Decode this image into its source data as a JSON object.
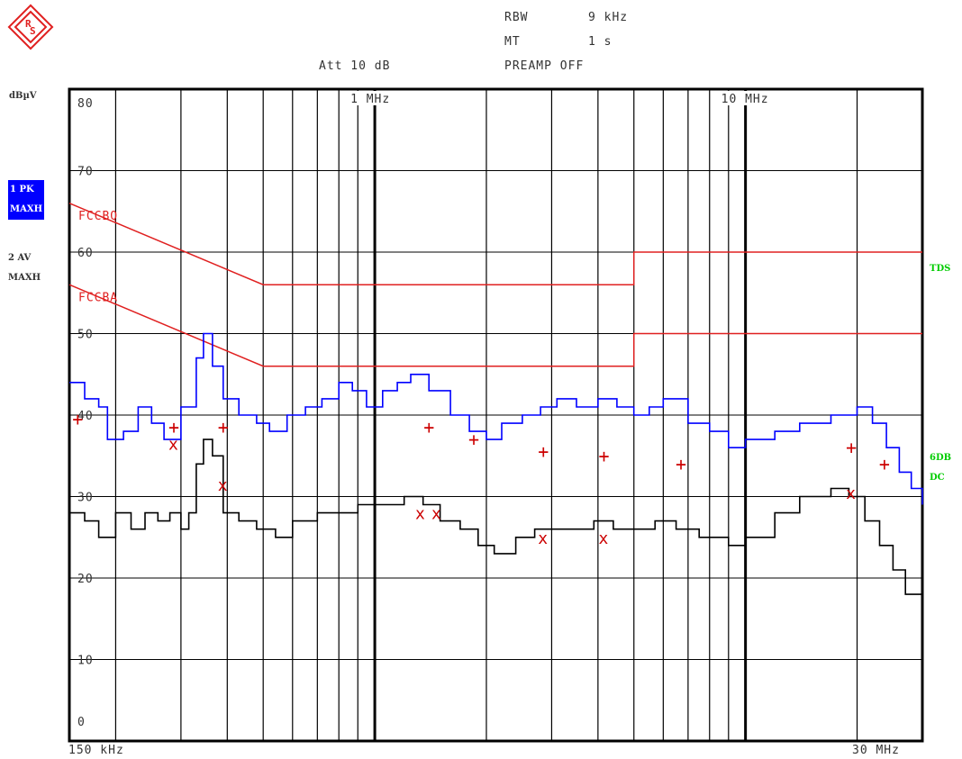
{
  "header": {
    "rbw_label": "RBW",
    "rbw_value": "9 kHz",
    "mt_label": "MT",
    "mt_value": "1 s",
    "att": "Att 10 dB",
    "preamp": "PREAMP OFF"
  },
  "side": {
    "unit": "dBµV",
    "trace1_a": "1 PK",
    "trace1_b": "MAXH",
    "trace2_a": "2 AV",
    "trace2_b": "MAXH",
    "right_top": "TDS",
    "right_mid_a": "6DB",
    "right_mid_b": "DC"
  },
  "colors": {
    "trace1": "#0000ff",
    "trace2": "#000000",
    "limit": "#e02020",
    "accent_green": "#00cc00",
    "marker": "#cc0000"
  },
  "chart_data": {
    "type": "line",
    "x_scale": "log",
    "xlim_hz": [
      150000,
      30000000
    ],
    "ylim": [
      0,
      80
    ],
    "ylabel": "dBµV",
    "x_start_label": "150 kHz",
    "x_end_label": "30 MHz",
    "x_ticks": [
      {
        "label": "1 MHz",
        "hz": 1000000
      },
      {
        "label": "10 MHz",
        "hz": 10000000
      }
    ],
    "y_ticks": [
      "0",
      "10",
      "20",
      "30",
      "40",
      "50",
      "60",
      "70",
      "80"
    ],
    "y_tick_values": [
      0,
      10,
      20,
      30,
      40,
      50,
      60,
      70,
      80
    ],
    "grid": true,
    "limit_lines": [
      {
        "name": "FCCBQ",
        "points": [
          [
            150000,
            66
          ],
          [
            500000,
            56
          ],
          [
            5000000,
            56
          ],
          [
            5000000,
            60
          ],
          [
            30000000,
            60
          ]
        ]
      },
      {
        "name": "FCCBA",
        "points": [
          [
            150000,
            56
          ],
          [
            500000,
            46
          ],
          [
            5000000,
            46
          ],
          [
            5000000,
            50
          ],
          [
            30000000,
            50
          ]
        ]
      }
    ],
    "series": [
      {
        "name": "1 PK MAXH",
        "color": "#0000ff",
        "points": [
          [
            150000,
            44
          ],
          [
            165000,
            42
          ],
          [
            180000,
            41
          ],
          [
            190000,
            37
          ],
          [
            210000,
            38
          ],
          [
            230000,
            41
          ],
          [
            250000,
            39
          ],
          [
            270000,
            37
          ],
          [
            300000,
            41
          ],
          [
            330000,
            47
          ],
          [
            345000,
            50
          ],
          [
            365000,
            46
          ],
          [
            390000,
            42
          ],
          [
            430000,
            40
          ],
          [
            480000,
            39
          ],
          [
            520000,
            38
          ],
          [
            580000,
            40
          ],
          [
            650000,
            41
          ],
          [
            720000,
            42
          ],
          [
            800000,
            44
          ],
          [
            870000,
            43
          ],
          [
            950000,
            41
          ],
          [
            1050000,
            43
          ],
          [
            1150000,
            44
          ],
          [
            1250000,
            45
          ],
          [
            1400000,
            43
          ],
          [
            1600000,
            40
          ],
          [
            1800000,
            38
          ],
          [
            2000000,
            37
          ],
          [
            2200000,
            39
          ],
          [
            2500000,
            40
          ],
          [
            2800000,
            41
          ],
          [
            3100000,
            42
          ],
          [
            3500000,
            41
          ],
          [
            4000000,
            42
          ],
          [
            4500000,
            41
          ],
          [
            5000000,
            40
          ],
          [
            5500000,
            41
          ],
          [
            6000000,
            42
          ],
          [
            7000000,
            39
          ],
          [
            8000000,
            38
          ],
          [
            9000000,
            36
          ],
          [
            10000000,
            37
          ],
          [
            12000000,
            38
          ],
          [
            14000000,
            39
          ],
          [
            17000000,
            40
          ],
          [
            20000000,
            41
          ],
          [
            22000000,
            39
          ],
          [
            24000000,
            36
          ],
          [
            26000000,
            33
          ],
          [
            28000000,
            31
          ],
          [
            30000000,
            29
          ]
        ]
      },
      {
        "name": "2 AV MAXH",
        "color": "#000000",
        "points": [
          [
            150000,
            28
          ],
          [
            165000,
            27
          ],
          [
            180000,
            25
          ],
          [
            200000,
            28
          ],
          [
            220000,
            26
          ],
          [
            240000,
            28
          ],
          [
            260000,
            27
          ],
          [
            280000,
            28
          ],
          [
            300000,
            26
          ],
          [
            315000,
            28
          ],
          [
            330000,
            34
          ],
          [
            345000,
            37
          ],
          [
            365000,
            35
          ],
          [
            390000,
            28
          ],
          [
            430000,
            27
          ],
          [
            480000,
            26
          ],
          [
            540000,
            25
          ],
          [
            600000,
            27
          ],
          [
            700000,
            28
          ],
          [
            800000,
            28
          ],
          [
            900000,
            29
          ],
          [
            1000000,
            29
          ],
          [
            1100000,
            29
          ],
          [
            1200000,
            30
          ],
          [
            1350000,
            29
          ],
          [
            1500000,
            27
          ],
          [
            1700000,
            26
          ],
          [
            1900000,
            24
          ],
          [
            2100000,
            23
          ],
          [
            2400000,
            25
          ],
          [
            2700000,
            26
          ],
          [
            3000000,
            26
          ],
          [
            3400000,
            26
          ],
          [
            3900000,
            27
          ],
          [
            4400000,
            26
          ],
          [
            5000000,
            26
          ],
          [
            5700000,
            27
          ],
          [
            6500000,
            26
          ],
          [
            7500000,
            25
          ],
          [
            9000000,
            24
          ],
          [
            10000000,
            25
          ],
          [
            12000000,
            28
          ],
          [
            14000000,
            30
          ],
          [
            17000000,
            31
          ],
          [
            19000000,
            30
          ],
          [
            21000000,
            27
          ],
          [
            23000000,
            24
          ],
          [
            25000000,
            21
          ],
          [
            27000000,
            18
          ],
          [
            30000000,
            15
          ]
        ]
      }
    ],
    "markers_plus": [
      [
        158000,
        39.5
      ],
      [
        287000,
        38.5
      ],
      [
        390000,
        38.5
      ],
      [
        1400000,
        38.5
      ],
      [
        1850000,
        37
      ],
      [
        2850000,
        35.5
      ],
      [
        4150000,
        35
      ],
      [
        6700000,
        34
      ],
      [
        19300000,
        36
      ],
      [
        23700000,
        34
      ]
    ],
    "markers_x": [
      [
        287000,
        36.5
      ],
      [
        390000,
        31.5
      ],
      [
        1330000,
        28
      ],
      [
        1470000,
        28
      ],
      [
        2850000,
        25
      ],
      [
        4150000,
        25
      ],
      [
        19300000,
        30.5
      ]
    ]
  }
}
